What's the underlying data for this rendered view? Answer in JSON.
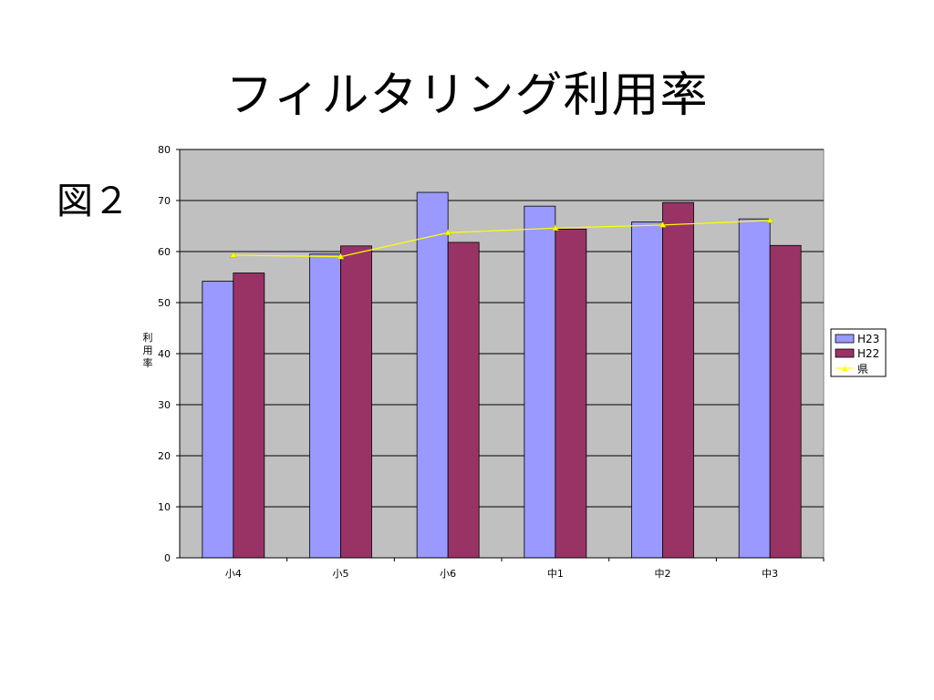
{
  "slide": {
    "title": "フィルタリング利用率",
    "figure_label": "図２"
  },
  "chart_data": {
    "type": "bar",
    "categories": [
      "小4",
      "小5",
      "小6",
      "中1",
      "中2",
      "中3"
    ],
    "series": [
      {
        "name": "H23",
        "kind": "bar",
        "color": "#9999ff",
        "values": [
          54.2,
          59.5,
          71.6,
          68.9,
          65.8,
          66.4
        ]
      },
      {
        "name": "H22",
        "kind": "bar",
        "color": "#993366",
        "values": [
          55.8,
          61.1,
          61.8,
          64.4,
          69.6,
          61.2
        ]
      },
      {
        "name": "県",
        "kind": "line",
        "color": "#ffff00",
        "values": [
          59.3,
          59.0,
          63.7,
          64.6,
          65.2,
          66.1
        ]
      }
    ],
    "ylabel": "利用率",
    "ylim": [
      0,
      80
    ],
    "yticks": [
      0,
      10,
      20,
      30,
      40,
      50,
      60,
      70,
      80
    ],
    "grid": true,
    "plot_background": "#c0c0c0",
    "legend_position": "right"
  }
}
